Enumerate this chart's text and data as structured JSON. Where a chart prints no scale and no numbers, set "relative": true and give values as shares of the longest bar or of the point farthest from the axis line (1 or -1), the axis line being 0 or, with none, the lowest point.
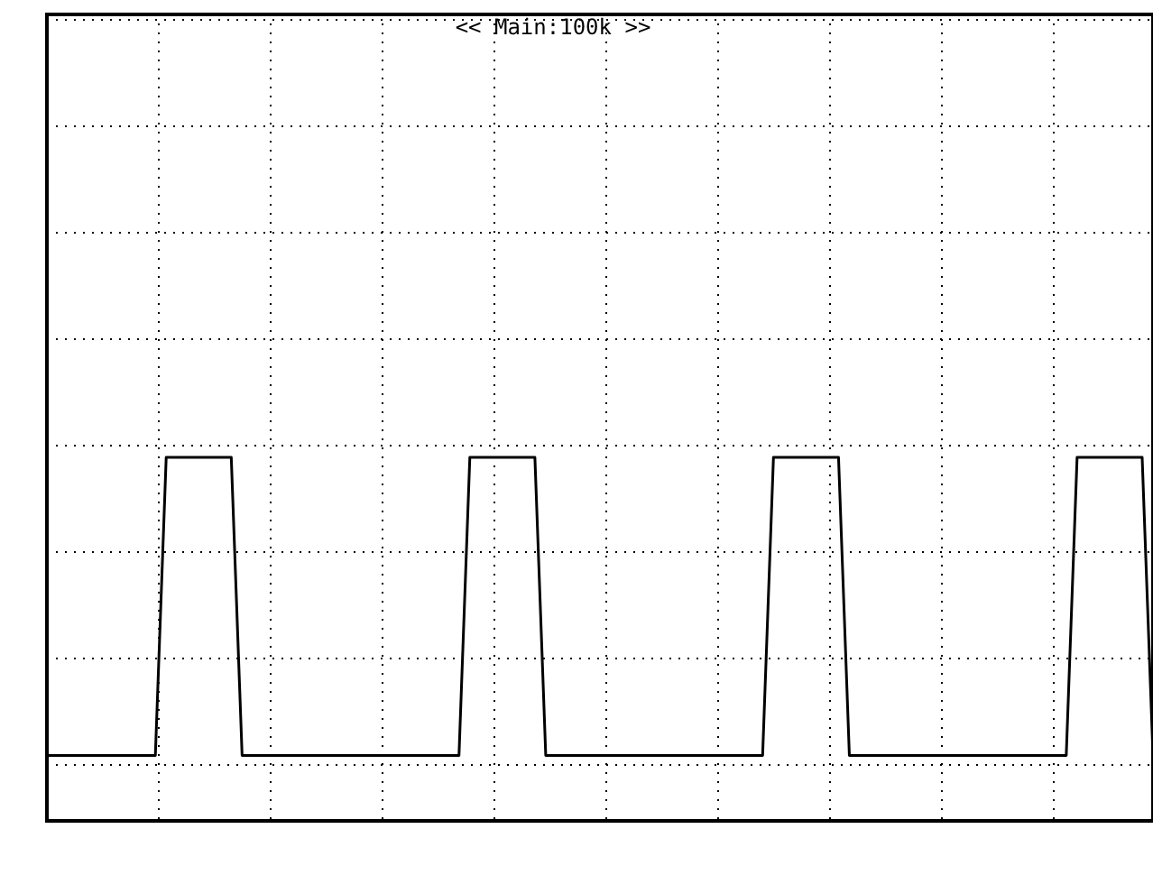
{
  "chart_data": {
    "type": "line",
    "title": "<< Main:100k >>",
    "relative": true,
    "grid": true,
    "categories": [
      null,
      null,
      null,
      null,
      null,
      null,
      null,
      null,
      null,
      null,
      null,
      null,
      null,
      null,
      null,
      null,
      null,
      null,
      null,
      null,
      null,
      null,
      null,
      null,
      null,
      null,
      null,
      null,
      null,
      null,
      null,
      null,
      null,
      null,
      null,
      null,
      null,
      null,
      null,
      null,
      null,
      null,
      null,
      null,
      null,
      null,
      null,
      null,
      null,
      null,
      null,
      null,
      null,
      null,
      null,
      null,
      null,
      null,
      null,
      null,
      null,
      null,
      null,
      null,
      null,
      null,
      null,
      null,
      null,
      null,
      null,
      null,
      null,
      null,
      null,
      null,
      null,
      null,
      null,
      null,
      null,
      null,
      null,
      null,
      null,
      null,
      null,
      null,
      null,
      null,
      null,
      null,
      null,
      null,
      null,
      null,
      null,
      null,
      null,
      null,
      null,
      null,
      null
    ],
    "series": [
      {
        "color": "#000000",
        "values": [
          0.18,
          0.18,
          0.18,
          0.18,
          0.18,
          0.18,
          0.18,
          0.18,
          0.18,
          0.18,
          0.18,
          1,
          1,
          1,
          1,
          1,
          1,
          1,
          0.18,
          0.18,
          0.18,
          0.18,
          0.18,
          0.18,
          0.18,
          0.18,
          0.18,
          0.18,
          0.18,
          0.18,
          0.18,
          0.18,
          0.18,
          0.18,
          0.18,
          0.18,
          0.18,
          0.18,
          0.18,
          1,
          1,
          1,
          1,
          1,
          1,
          1,
          0.18,
          0.18,
          0.18,
          0.18,
          0.18,
          0.18,
          0.18,
          0.18,
          0.18,
          0.18,
          0.18,
          0.18,
          0.18,
          0.18,
          0.18,
          0.18,
          0.18,
          0.18,
          0.18,
          0.18,
          0.18,
          1,
          1,
          1,
          1,
          1,
          1,
          1,
          0.18,
          0.18,
          0.18,
          0.18,
          0.18,
          0.18,
          0.18,
          0.18,
          0.18,
          0.18,
          0.18,
          0.18,
          0.18,
          0.18,
          0.18,
          0.18,
          0.18,
          0.18,
          0.18,
          0.18,
          0.18,
          1,
          1,
          1,
          1,
          1,
          1,
          1,
          0.18
        ],
        "line_style": "solid"
      }
    ]
  }
}
